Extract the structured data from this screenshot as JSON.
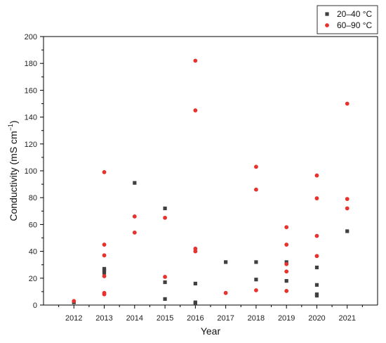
{
  "chart_data": {
    "type": "scatter",
    "title": "",
    "xlabel": "Year",
    "ylabel_main": "Conductivity (mS cm",
    "ylabel_sup": "−1",
    "ylabel_end": ")",
    "xlim": [
      2011,
      2022
    ],
    "ylim": [
      0,
      200
    ],
    "x_ticks": [
      2012,
      2013,
      2014,
      2015,
      2016,
      2017,
      2018,
      2019,
      2020,
      2021
    ],
    "y_ticks": [
      0,
      20,
      40,
      60,
      80,
      100,
      120,
      140,
      160,
      180,
      200
    ],
    "grid": false,
    "legend_position": "top-right",
    "series": [
      {
        "name": "20–40 °C",
        "marker": "square",
        "color": "#404040",
        "points": [
          [
            2012,
            2
          ],
          [
            2013,
            24
          ],
          [
            2013,
            26
          ],
          [
            2013,
            27
          ],
          [
            2014,
            91
          ],
          [
            2015,
            72
          ],
          [
            2015,
            17
          ],
          [
            2015,
            4.5
          ],
          [
            2016,
            16
          ],
          [
            2016,
            2
          ],
          [
            2016,
            1
          ],
          [
            2017,
            32
          ],
          [
            2018,
            32
          ],
          [
            2018,
            19
          ],
          [
            2019,
            32
          ],
          [
            2019,
            18
          ],
          [
            2020,
            28
          ],
          [
            2020,
            15
          ],
          [
            2020,
            8
          ],
          [
            2020,
            7
          ],
          [
            2021,
            55
          ]
        ]
      },
      {
        "name": "60–90 °C",
        "marker": "circle",
        "color": "#e8322e",
        "points": [
          [
            2012,
            3
          ],
          [
            2013,
            99
          ],
          [
            2013,
            45
          ],
          [
            2013,
            37
          ],
          [
            2013,
            21.5
          ],
          [
            2013,
            9
          ],
          [
            2013,
            8
          ],
          [
            2014,
            66
          ],
          [
            2014,
            54
          ],
          [
            2015,
            65
          ],
          [
            2015,
            21
          ],
          [
            2016,
            182
          ],
          [
            2016,
            145
          ],
          [
            2016,
            42
          ],
          [
            2016,
            40
          ],
          [
            2017,
            9
          ],
          [
            2018,
            103
          ],
          [
            2018,
            86
          ],
          [
            2018,
            11
          ],
          [
            2019,
            58
          ],
          [
            2019,
            45
          ],
          [
            2019,
            30.5
          ],
          [
            2019,
            25
          ],
          [
            2019,
            10.5
          ],
          [
            2020,
            96.5
          ],
          [
            2020,
            79.5
          ],
          [
            2020,
            51.5
          ],
          [
            2020,
            36.5
          ],
          [
            2021,
            150
          ],
          [
            2021,
            79
          ],
          [
            2021,
            72
          ]
        ]
      }
    ]
  }
}
